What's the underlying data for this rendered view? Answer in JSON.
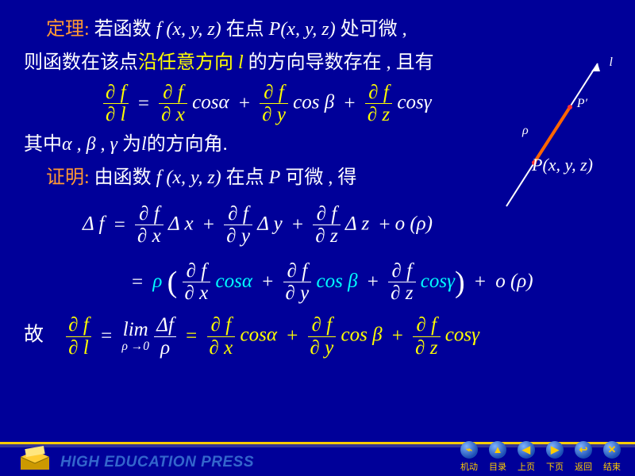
{
  "colors": {
    "bg": "#000099",
    "text": "#ffffff",
    "highlight": "#ffff00",
    "accent": "#ff9933",
    "cyan": "#00ffff",
    "gold": "#ffcc00",
    "brand": "#3366cc"
  },
  "theorem_label": "定理:",
  "theorem_l1a": "若函数 ",
  "func": "f (x, y, z)",
  "theorem_l1b": " 在点 ",
  "point_P": "P(x, y, z)",
  "theorem_l1c": " 处可微 ,",
  "theorem_l2a": "则函数在该点",
  "theorem_l2b": "沿任意方向",
  "theorem_l2c": " 的方向导数存在 , 且有",
  "dir_l": "l",
  "partial": "∂",
  "f": "f",
  "x": "x",
  "y": "y",
  "z": "z",
  "l": "l",
  "cos": "cos",
  "a": "α",
  "b": "β",
  "g": "γ",
  "equals": "=",
  "plus": "+",
  "where_a": "其中",
  "where_vars": "α , β , γ ",
  "where_b": "为",
  "where_c": "的方向角.",
  "proof_label": "证明:",
  "proof_a": "由函数",
  "proof_b": " 在点 ",
  "P": "P",
  "proof_c": " 可微 ,  得",
  "Delta": "Δ",
  "rho": "ρ",
  "o_rho": "o (ρ)",
  "paren_l": "(",
  "paren_r": ")",
  "gu": "故",
  "lim": "lim",
  "limsub": "ρ →0",
  "diagram": {
    "l_label": "l",
    "Pprime": "P′",
    "rho": "ρ",
    "Pxyz": "P(x, y, z)",
    "line_color": "#ffffff",
    "seg_color": "#ff6600",
    "text_italic": true
  },
  "brand": "HIGH EDUCATION PRESS",
  "nav": [
    {
      "icon": "⌁",
      "label": "机动"
    },
    {
      "icon": "▲",
      "label": "目录"
    },
    {
      "icon": "◀",
      "label": "上页"
    },
    {
      "icon": "▶",
      "label": "下页"
    },
    {
      "icon": "↩",
      "label": "返回"
    },
    {
      "icon": "✕",
      "label": "结束"
    }
  ]
}
